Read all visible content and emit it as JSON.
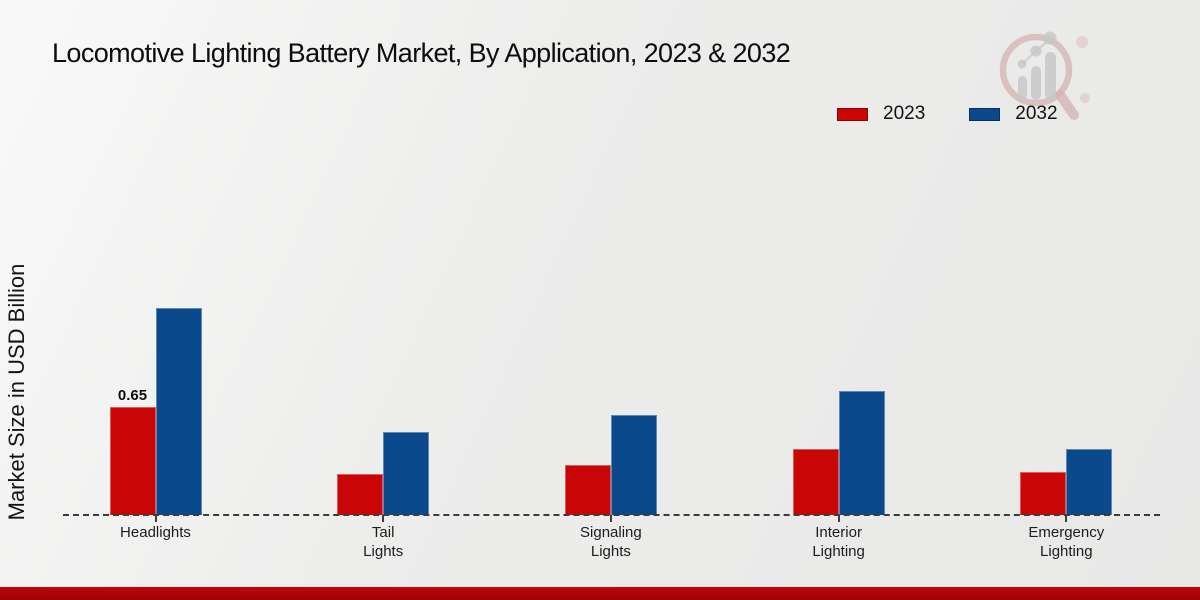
{
  "page": {
    "title": "Locomotive Lighting Battery Market, By Application, 2023 & 2032",
    "footer_accent_color": "#b30606",
    "watermark_icon": "magnifier-bar-chart-logo"
  },
  "legend": {
    "items": [
      {
        "label": "2023",
        "color": "#c90505"
      },
      {
        "label": "2032",
        "color": "#0a4a8c"
      }
    ]
  },
  "chart_data": {
    "type": "bar",
    "title": "Locomotive Lighting Battery Market, By Application, 2023 & 2032",
    "xlabel": "",
    "ylabel": "Market Size in USD Billion",
    "categories": [
      "Headlights",
      "Tail Lights",
      "Signaling Lights",
      "Interior Lighting",
      "Emergency Lighting"
    ],
    "tick_labels": [
      "Headlights",
      "Tail\nLights",
      "Signaling\nLights",
      "Interior\nLighting",
      "Emergency\nLighting"
    ],
    "series": [
      {
        "name": "2023",
        "color": "#c90505",
        "values": [
          0.65,
          0.25,
          0.3,
          0.4,
          0.26
        ]
      },
      {
        "name": "2032",
        "color": "#0a4a8c",
        "values": [
          1.25,
          0.5,
          0.6,
          0.75,
          0.4
        ]
      }
    ],
    "data_labels": [
      {
        "series": "2023",
        "category": "Headlights",
        "text": "0.65"
      }
    ],
    "ylim": [
      0,
      1.3
    ],
    "grid": false,
    "legend_position": "top-right",
    "baseline_style": "dashed",
    "axis_visible": false
  }
}
